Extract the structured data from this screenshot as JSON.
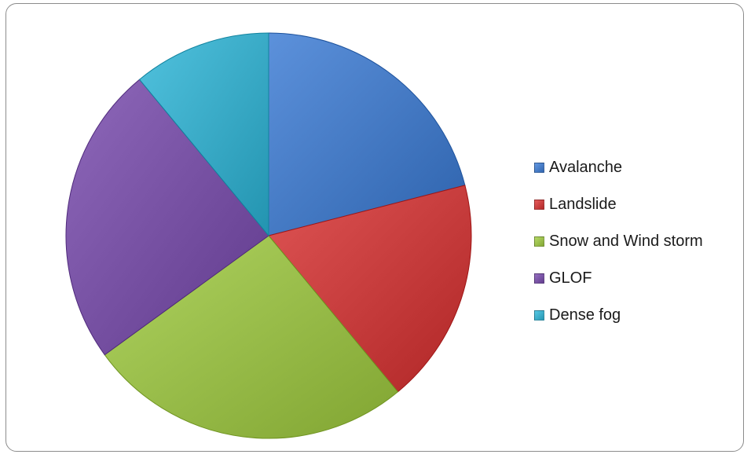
{
  "chart_data": {
    "type": "pie",
    "title": "",
    "legend_position": "right",
    "slices": [
      {
        "label": "Avalanche",
        "value": 21,
        "color": "#4a7fc9"
      },
      {
        "label": "Landslide",
        "value": 18,
        "color": "#cc4242"
      },
      {
        "label": "Snow and Wind storm",
        "value": 26,
        "color": "#9dc14e"
      },
      {
        "label": "GLOF",
        "value": 24,
        "color": "#7c56a8"
      },
      {
        "label": "Dense fog",
        "value": 11,
        "color": "#3fb0cc"
      }
    ]
  },
  "legend": {
    "items": [
      {
        "label": "Avalanche"
      },
      {
        "label": "Landslide"
      },
      {
        "label": "Snow and Wind storm"
      },
      {
        "label": "GLOF"
      },
      {
        "label": "Dense fog"
      }
    ]
  }
}
